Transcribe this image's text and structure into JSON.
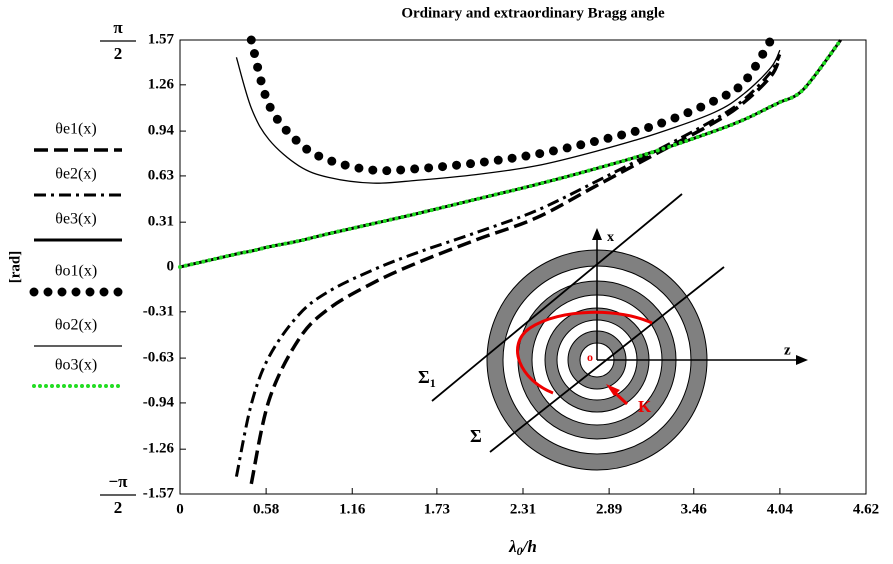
{
  "chart_data": {
    "type": "line",
    "title": "Ordinary and extraordinary Bragg angle",
    "xlabel": {
      "main": "λ",
      "sub": "0",
      "rest": "/h"
    },
    "ylabel": "[rad]",
    "x": [
      0,
      0.38,
      0.48,
      0.6,
      0.8,
      1.0,
      1.3,
      1.6,
      2.0,
      2.4,
      2.8,
      3.2,
      3.6,
      3.8,
      3.98,
      4.04,
      4.2,
      4.45
    ],
    "series": [
      {
        "name": "θe1(x)",
        "color": "#000000",
        "style": "dashed",
        "values": [
          null,
          null,
          -1.5,
          -0.92,
          -0.5,
          -0.29,
          -0.11,
          0.03,
          0.19,
          0.34,
          0.56,
          0.78,
          1.0,
          1.14,
          1.32,
          1.45,
          null,
          null
        ]
      },
      {
        "name": "θe2(x)",
        "color": "#000000",
        "style": "dashdot",
        "values": [
          null,
          -1.45,
          -0.95,
          -0.62,
          -0.33,
          -0.17,
          -0.02,
          0.1,
          0.24,
          0.39,
          0.59,
          0.8,
          1.02,
          1.16,
          1.35,
          1.47,
          null,
          null
        ]
      },
      {
        "name": "θe3(x)",
        "color": "#000000",
        "style": "solid-thick",
        "values": [
          0,
          0.09,
          0.11,
          0.14,
          0.18,
          0.23,
          0.3,
          0.37,
          0.47,
          0.57,
          0.68,
          0.8,
          0.94,
          1.02,
          1.11,
          1.14,
          1.23,
          1.57
        ]
      },
      {
        "name": "θo1(x)",
        "color": "#000000",
        "style": "bigdots",
        "values": [
          null,
          null,
          1.57,
          1.12,
          0.86,
          0.74,
          0.67,
          0.68,
          0.72,
          0.78,
          0.87,
          0.98,
          1.15,
          1.28,
          1.57,
          null,
          null,
          null
        ]
      },
      {
        "name": "θo2(x)",
        "color": "#000000",
        "style": "solid-thin",
        "values": [
          null,
          1.45,
          1.1,
          0.88,
          0.7,
          0.62,
          0.58,
          0.6,
          0.64,
          0.7,
          0.8,
          0.92,
          1.07,
          1.2,
          1.38,
          1.5,
          null,
          null
        ]
      },
      {
        "name": "θo3(x)",
        "color": "#22dd22",
        "style": "smalldots",
        "values": [
          0,
          0.09,
          0.11,
          0.14,
          0.18,
          0.23,
          0.3,
          0.37,
          0.47,
          0.57,
          0.68,
          0.8,
          0.94,
          1.02,
          1.11,
          1.14,
          1.23,
          1.57
        ]
      }
    ],
    "xlim": [
      0,
      4.62
    ],
    "ylim": [
      -1.57,
      1.57
    ],
    "xticks": [
      0,
      0.58,
      1.16,
      1.73,
      2.31,
      2.89,
      3.46,
      4.04,
      4.62
    ],
    "yticks": [
      -1.57,
      -1.26,
      -0.94,
      -0.63,
      -0.31,
      0,
      0.31,
      0.63,
      0.94,
      1.26,
      1.57
    ],
    "pi_labels": [
      {
        "value": 1.57,
        "numerator": "π",
        "denominator": "2"
      },
      {
        "value": -1.57,
        "numerator": "−π",
        "denominator": "2"
      }
    ],
    "legend": "left",
    "inset": {
      "x_label": "x",
      "z_label": "z",
      "origin_label": "o",
      "k_label": "K",
      "sigma1_label": "Σ",
      "sigma1_sub": "1",
      "sigma_label": "Σ"
    }
  }
}
